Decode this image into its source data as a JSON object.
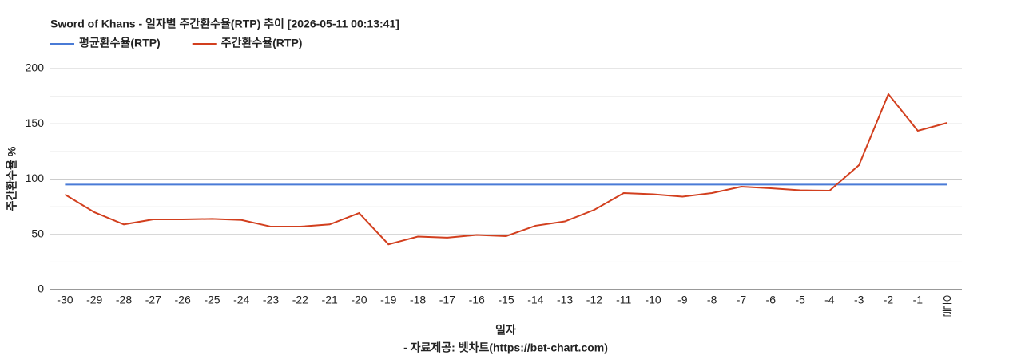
{
  "chart_data": {
    "type": "line",
    "title": "Sword of Khans - 일자별 주간환수율(RTP) 추이 [2026-05-11 00:13:41]",
    "x_label": "일자",
    "y_label": "주간환수율 %",
    "source": "- 자료제공: 벳차트(https://bet-chart.com)",
    "categories": [
      "-30",
      "-29",
      "-28",
      "-27",
      "-26",
      "-25",
      "-24",
      "-23",
      "-22",
      "-21",
      "-20",
      "-19",
      "-18",
      "-17",
      "-16",
      "-15",
      "-14",
      "-13",
      "-12",
      "-11",
      "-10",
      "-9",
      "-8",
      "-7",
      "-6",
      "-5",
      "-4",
      "-3",
      "-2",
      "-1",
      "오늘"
    ],
    "series": [
      {
        "name": "평균환수율(RTP)",
        "color": "#4a7bd6",
        "values": [
          95,
          95,
          95,
          95,
          95,
          95,
          95,
          95,
          95,
          95,
          95,
          95,
          95,
          95,
          95,
          95,
          95,
          95,
          95,
          95,
          95,
          95,
          95,
          95,
          95,
          95,
          95,
          95,
          95,
          95,
          95
        ]
      },
      {
        "name": "주간환수율(RTP)",
        "color": "#d23f1e",
        "values": [
          86,
          70,
          59,
          63.5,
          63.5,
          64,
          63,
          57,
          57,
          59,
          69.3,
          41,
          48,
          47,
          49.5,
          48.4,
          57.8,
          61.7,
          72.2,
          87.4,
          86.3,
          84.1,
          87.4,
          93.1,
          91.7,
          89.9,
          89.5,
          112.6,
          176.9,
          143.7,
          150.9
        ]
      }
    ],
    "ylim": [
      0,
      200
    ],
    "yticks": [
      0,
      50,
      100,
      150,
      200
    ],
    "minor_yticks": [
      25,
      75,
      125,
      175
    ],
    "grid": true,
    "legend": "top"
  }
}
